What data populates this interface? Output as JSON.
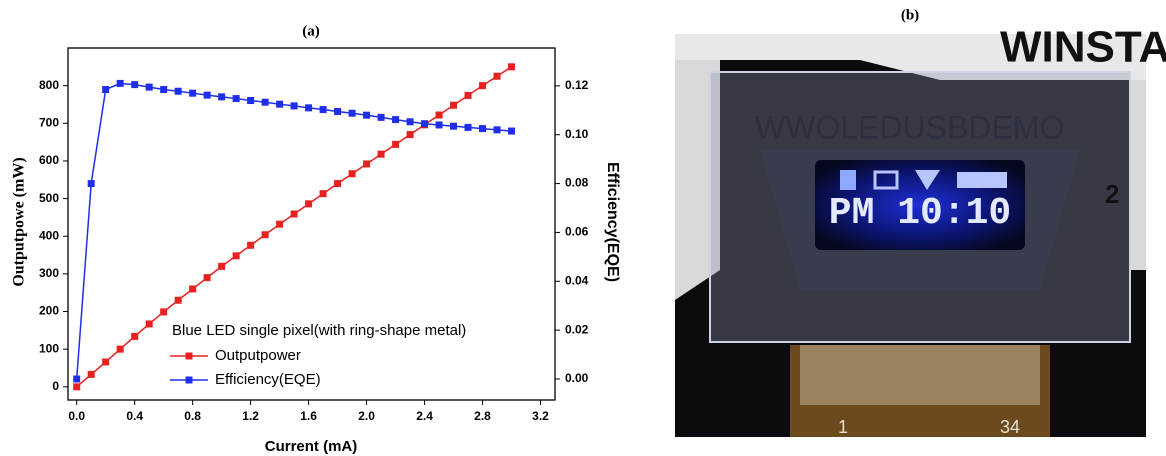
{
  "chart_data": {
    "type": "line",
    "title": "(a)",
    "xlabel": "Current (mA)",
    "ylabel": "Outputpowe (mW)",
    "y2label": "Efficiency(EQE)",
    "legend_title": "Blue LED single pixel(with ring-shape metal)",
    "legend": "lower-right",
    "x": [
      0,
      0.1,
      0.2,
      0.3,
      0.4,
      0.5,
      0.6,
      0.7,
      0.8,
      0.9,
      1.0,
      1.1,
      1.2,
      1.3,
      1.4,
      1.5,
      1.6,
      1.7,
      1.8,
      1.9,
      2.0,
      2.1,
      2.2,
      2.3,
      2.4,
      2.5,
      2.6,
      2.7,
      2.8,
      2.9,
      3.0
    ],
    "series": [
      {
        "name": "Outputpower",
        "color": "#e8201f",
        "axis": "y",
        "values": [
          0,
          33,
          66,
          100,
          134,
          167,
          199,
          230,
          260,
          290,
          320,
          348,
          376,
          404,
          432,
          459,
          486,
          513,
          540,
          566,
          592,
          618,
          644,
          670,
          696,
          722,
          748,
          774,
          800,
          825,
          850
        ]
      },
      {
        "name": "Efficiency(EQE)",
        "color": "#1f2ee8",
        "axis": "y2",
        "values": [
          0,
          0.08,
          0.1185,
          0.121,
          0.1205,
          0.1195,
          0.1185,
          0.1178,
          0.117,
          0.1162,
          0.1155,
          0.1148,
          0.114,
          0.1133,
          0.1125,
          0.1118,
          0.111,
          0.1103,
          0.1095,
          0.1088,
          0.108,
          0.1071,
          0.1062,
          0.1053,
          0.1045,
          0.104,
          0.1035,
          0.103,
          0.1025,
          0.102,
          0.1015
        ]
      }
    ],
    "xlim": [
      -0.06,
      3.3
    ],
    "xticks": [
      {
        "value": 0,
        "label": "0.0"
      },
      0.4,
      0.8,
      1.2,
      1.6,
      {
        "value": 2,
        "label": "2.0"
      },
      2.4,
      2.8,
      3.2
    ],
    "ylim": [
      -35,
      900
    ],
    "yticks": [
      0,
      100,
      200,
      300,
      400,
      500,
      600,
      700,
      800
    ],
    "y2lim": [
      -0.0086,
      0.1355
    ],
    "y2ticks": [
      {
        "value": 0,
        "label": "0.00"
      },
      {
        "value": 0.02,
        "label": "0.02"
      },
      {
        "value": 0.04,
        "label": "0.04"
      },
      {
        "value": 0.06,
        "label": "0.06"
      },
      {
        "value": 0.08,
        "label": "0.08"
      },
      {
        "value": 0.1,
        "label": "0.10"
      },
      {
        "value": 0.12,
        "label": "0.12"
      }
    ],
    "grid": false
  },
  "photo": {
    "label": "(b)",
    "brand": "WINSTA",
    "url_text": "WWOLEDUSBDEMO",
    "clock": "PM 10:10",
    "side_number": "2",
    "pin_first": "1",
    "pin_last": "34"
  }
}
